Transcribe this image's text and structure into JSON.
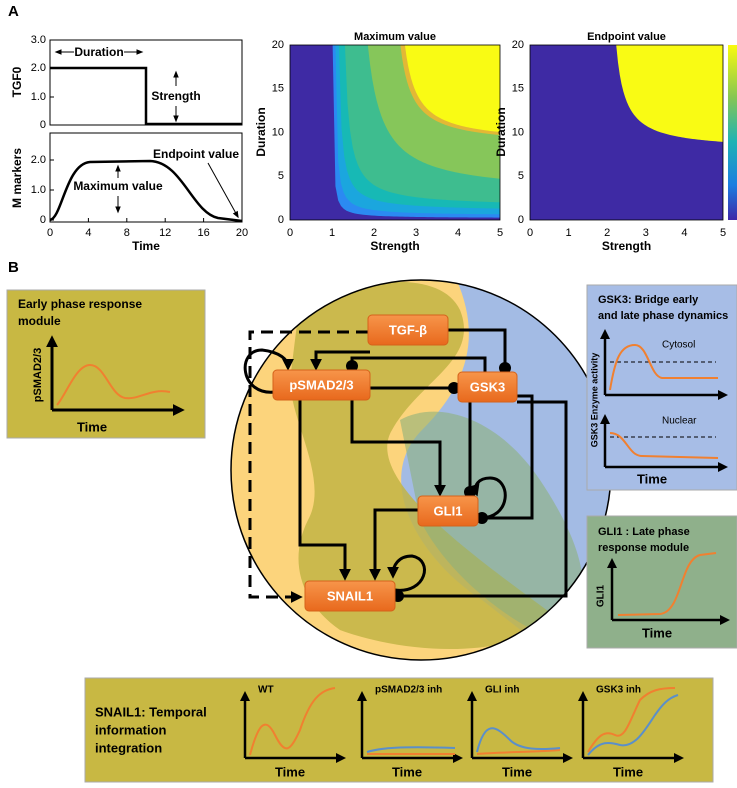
{
  "panel_a": {
    "label": "A",
    "input_plot": {
      "ylabel": "TGF0",
      "yticks": [
        "0",
        "1.0",
        "2.0",
        "3.0"
      ],
      "duration": "Duration",
      "strength": "Strength"
    },
    "output_plot": {
      "ylabel": "M markers",
      "xlabel": "Time",
      "yticks": [
        "0",
        "1.0",
        "2.0"
      ],
      "xticks": [
        "0",
        "4",
        "8",
        "12",
        "16",
        "20"
      ],
      "maximum": "Maximum value",
      "endpoint": "Endpoint value"
    },
    "heatmaps": [
      {
        "title": "Maximum value",
        "xlabel": "Strength",
        "ylabel": "Duration",
        "xticks": [
          "0",
          "1",
          "2",
          "3",
          "4",
          "5"
        ],
        "yticks": [
          "0",
          "5",
          "10",
          "15",
          "20"
        ]
      },
      {
        "title": "Endpoint value",
        "xlabel": "Strength",
        "ylabel": "Duration",
        "xticks": [
          "0",
          "1",
          "2",
          "3",
          "4",
          "5"
        ],
        "yticks": [
          "0",
          "5",
          "10",
          "15",
          "20"
        ]
      }
    ]
  },
  "panel_b": {
    "label": "B",
    "nodes": [
      {
        "label": "TGF-β"
      },
      {
        "label": "pSMAD2/3"
      },
      {
        "label": "GSK3"
      },
      {
        "label": "GLI1"
      },
      {
        "label": "SNAIL1"
      }
    ],
    "early_module": {
      "title": [
        "Early phase response",
        "module"
      ],
      "ylabel": "pSMAD2/3",
      "xlabel": "Time"
    },
    "gsk3_module": {
      "title": [
        "GSK3: Bridge early",
        "and late phase dynamics"
      ],
      "cytosol": "Cytosol",
      "nuclear": "Nuclear",
      "ylabel": "GSK3 Enzyme activity",
      "xlabel": "Time"
    },
    "gli1_module": {
      "title": [
        "GLI1 : Late phase",
        "response module"
      ],
      "ylabel": "GLI1",
      "xlabel": "Time"
    },
    "snail_module": {
      "title": [
        "SNAIL1: Temporal",
        "information",
        "integration"
      ],
      "plots": [
        {
          "label": "WT",
          "xlabel": "Time"
        },
        {
          "label": "pSMAD2/3 inh",
          "xlabel": "Time"
        },
        {
          "label": "GLI inh",
          "xlabel": "Time"
        },
        {
          "label": "GSK3 inh",
          "xlabel": "Time"
        }
      ]
    }
  }
}
